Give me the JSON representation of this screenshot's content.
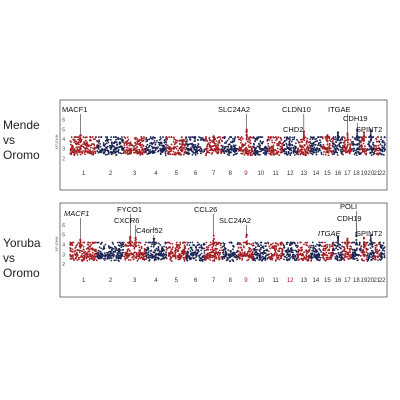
{
  "colors": {
    "red": "#a31f24",
    "navy": "#1c2452",
    "frame": "#555555",
    "chr_label_default": "#333333",
    "chr_label_highlight": "#b1121b"
  },
  "chart_data": [
    {
      "type": "scatter",
      "subtype": "manhattan",
      "population_label": [
        "Mende",
        "vs",
        "Oromo"
      ],
      "ylabel": "XP-EHH",
      "ylim": [
        1,
        7
      ],
      "yticks": [
        2,
        3,
        4,
        5,
        6
      ],
      "chromosomes": [
        "1",
        "2",
        "3",
        "4",
        "5",
        "6",
        "7",
        "8",
        "9",
        "10",
        "11",
        "12",
        "13",
        "14",
        "15",
        "16",
        "17",
        "18",
        "19",
        "20",
        "21",
        "22"
      ],
      "highlighted_chromosomes": [
        "9"
      ],
      "series_colors": [
        "red",
        "navy"
      ],
      "baseline": 3.0,
      "peaks": [
        {
          "chr": "1",
          "pos": 0.38,
          "value": 4.4
        },
        {
          "chr": "7",
          "pos": 0.5,
          "value": 4.3
        },
        {
          "chr": "9",
          "pos": 0.55,
          "value": 5.0
        },
        {
          "chr": "13",
          "pos": 0.5,
          "value": 4.8
        },
        {
          "chr": "15",
          "pos": 0.5,
          "value": 4.4
        },
        {
          "chr": "16",
          "pos": 0.5,
          "value": 4.7
        },
        {
          "chr": "17",
          "pos": 0.5,
          "value": 4.6
        },
        {
          "chr": "18",
          "pos": 0.6,
          "value": 5.0
        },
        {
          "chr": "19",
          "pos": 0.5,
          "value": 4.7
        },
        {
          "chr": "20",
          "pos": 0.5,
          "value": 4.9
        }
      ],
      "annotations": [
        {
          "text": "MACF1",
          "chr": "1",
          "pos": 0.38,
          "point_value": 4.4,
          "italic": false
        },
        {
          "text": "SLC24A2",
          "chr": "9",
          "pos": 0.55,
          "point_value": 5.0,
          "italic": false
        },
        {
          "text": "CLDN10",
          "chr": "13",
          "pos": 0.5,
          "point_value": 4.8,
          "italic": false
        },
        {
          "text": "CHD2",
          "chr": "15",
          "pos": 0.5,
          "point_value": 4.4,
          "italic": false
        },
        {
          "text": "ITGAE",
          "chr": "17",
          "pos": 0.5,
          "point_value": 4.6,
          "italic": false
        },
        {
          "text": "CDH19",
          "chr": "18",
          "pos": 0.6,
          "point_value": 5.0,
          "italic": false
        },
        {
          "text": "SPINT2",
          "chr": "20",
          "pos": 0.5,
          "point_value": 4.9,
          "italic": false
        }
      ]
    },
    {
      "type": "scatter",
      "subtype": "manhattan",
      "population_label": [
        "Yoruba",
        "vs",
        "Oromo"
      ],
      "ylabel": "XP-EHH",
      "ylim": [
        1,
        7
      ],
      "yticks": [
        2,
        3,
        4,
        5,
        6
      ],
      "chromosomes": [
        "1",
        "2",
        "3",
        "4",
        "5",
        "6",
        "7",
        "8",
        "9",
        "10",
        "11",
        "12",
        "13",
        "14",
        "15",
        "16",
        "17",
        "18",
        "19",
        "20",
        "21",
        "22"
      ],
      "highlighted_chromosomes": [
        "9",
        "12"
      ],
      "series_colors": [
        "red",
        "navy"
      ],
      "baseline": 3.0,
      "peaks": [
        {
          "chr": "1",
          "pos": 0.38,
          "value": 4.5
        },
        {
          "chr": "3",
          "pos": 0.3,
          "value": 4.8
        },
        {
          "chr": "3",
          "pos": 0.55,
          "value": 4.7
        },
        {
          "chr": "4",
          "pos": 0.4,
          "value": 4.6
        },
        {
          "chr": "7",
          "pos": 0.5,
          "value": 4.9
        },
        {
          "chr": "9",
          "pos": 0.55,
          "value": 5.0
        },
        {
          "chr": "16",
          "pos": 0.5,
          "value": 4.8
        },
        {
          "chr": "17",
          "pos": 0.5,
          "value": 4.6
        },
        {
          "chr": "18",
          "pos": 0.5,
          "value": 5.2
        },
        {
          "chr": "19",
          "pos": 0.5,
          "value": 4.7
        },
        {
          "chr": "20",
          "pos": 0.5,
          "value": 4.9
        }
      ],
      "annotations": [
        {
          "text": "MACF1",
          "chr": "1",
          "pos": 0.38,
          "point_value": 4.5,
          "italic": true
        },
        {
          "text": "FYCO1",
          "chr": "3",
          "pos": 0.3,
          "point_value": 4.8,
          "italic": false
        },
        {
          "text": "CXCR6",
          "chr": "3",
          "pos": 0.55,
          "point_value": 4.7,
          "italic": false
        },
        {
          "text": "C4orf52",
          "chr": "4",
          "pos": 0.4,
          "point_value": 4.6,
          "italic": false
        },
        {
          "text": "CCL26",
          "chr": "7",
          "pos": 0.5,
          "point_value": 4.9,
          "italic": false
        },
        {
          "text": "SLC24A2",
          "chr": "9",
          "pos": 0.55,
          "point_value": 5.0,
          "italic": false
        },
        {
          "text": "ITGAE",
          "chr": "17",
          "pos": 0.5,
          "point_value": 4.6,
          "italic": true
        },
        {
          "text": "POLI",
          "chr": "18",
          "pos": 0.5,
          "point_value": 5.2,
          "italic": false
        },
        {
          "text": "CDH19",
          "chr": "18",
          "pos": 0.5,
          "point_value": 5.2,
          "italic": false
        },
        {
          "text": "SPINT2",
          "chr": "20",
          "pos": 0.5,
          "point_value": 4.9,
          "italic": false
        }
      ]
    }
  ]
}
